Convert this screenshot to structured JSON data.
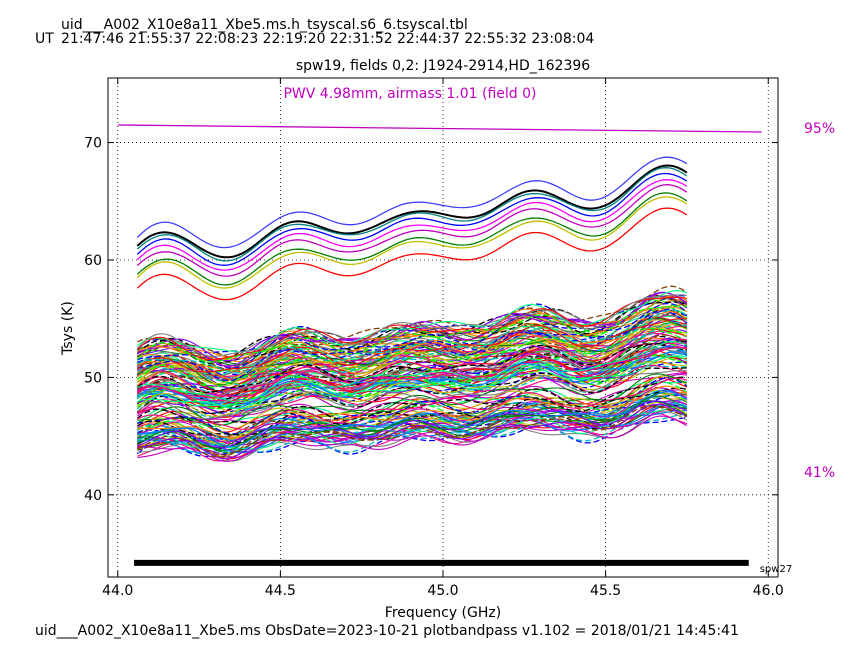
{
  "header": {
    "table_name": "uid___A002_X10e8a11_Xbe5.ms.h_tsyscal.s6_6.tsyscal.tbl",
    "ut_label": "UT",
    "ut_times": [
      "21:47:46",
      "21:55:37",
      "22:08:23",
      "22:19:20",
      "22:31:52",
      "22:44:37",
      "22:55:32",
      "23:08:04"
    ]
  },
  "footer": {
    "text": "uid___A002_X10e8a11_Xbe5.ms  ObsDate=2023-10-21   plotbandpass v1.102 = 2018/01/21 14:45:41"
  },
  "chart_data": {
    "type": "line",
    "title": "spw19,  fields 0,2: J1924-2914,HD_162396",
    "xlabel": "Frequency (GHz)",
    "ylabel": "Tsys (K)",
    "xlim": [
      43.97,
      46.03
    ],
    "ylim": [
      33,
      75.5
    ],
    "xticks": [
      44.0,
      44.5,
      45.0,
      45.5,
      46.0
    ],
    "xtick_labels": [
      "44.0",
      "44.5",
      "45.0",
      "45.5",
      "46.0"
    ],
    "yticks": [
      40,
      50,
      60,
      70
    ],
    "ytick_labels": [
      "40",
      "50",
      "60",
      "70"
    ],
    "grid": true,
    "annotation_pwv": "PWV 4.98mm, airmass 1.01 (field 0)",
    "atm_transmission": {
      "color": "#c000c0",
      "x": [
        44.0,
        45.98
      ],
      "y": [
        71.5,
        70.9
      ],
      "top_label": "95%",
      "bottom_label": "41%"
    },
    "spw_bar": {
      "x": [
        44.05,
        45.94
      ],
      "y": 34.2,
      "label": "spw27"
    },
    "freq_range": [
      44.06,
      45.75
    ],
    "upper_group": {
      "base_levels": [
        68.4,
        67.6,
        67.4,
        67.0,
        66.5,
        66.0,
        65.3,
        65.0,
        64.0
      ],
      "colors": [
        "#4040ff",
        "#000000",
        "#008080",
        "#0000ff",
        "#ff00ff",
        "#c000c0",
        "#008000",
        "#c0c000",
        "#ff0000"
      ]
    },
    "lower_group": {
      "range": [
        41.5,
        57.4
      ],
      "colors": [
        "#0000ff",
        "#008000",
        "#ff0000",
        "#00c0c0",
        "#c000c0",
        "#c0c000",
        "#000000",
        "#ff8000",
        "#8000ff",
        "#00ff00",
        "#ff0080",
        "#0080ff",
        "#804000",
        "#808080",
        "#00ff80"
      ]
    }
  }
}
